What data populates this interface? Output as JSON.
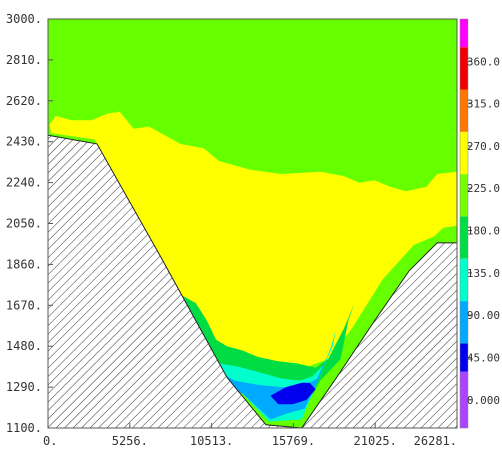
{
  "chart_data": {
    "type": "heatmap",
    "title": "",
    "xlabel": "",
    "ylabel": "",
    "xlim": [
      0,
      26281
    ],
    "ylim": [
      1100,
      3000
    ],
    "x_ticks": [
      0,
      5256,
      10513,
      15769,
      21025,
      26281
    ],
    "x_tick_labels": [
      "0.",
      "5256.",
      "10513.",
      "15769.",
      "21025.",
      "26281."
    ],
    "y_ticks": [
      3000,
      2810,
      2620,
      2430,
      2240,
      2050,
      1860,
      1670,
      1480,
      1290,
      1100
    ],
    "y_tick_labels": [
      "3000.",
      "2810.",
      "2620.",
      "2430.",
      "2240.",
      "2050.",
      "1860.",
      "1670.",
      "1480.",
      "1290.",
      "1100."
    ],
    "colorbar": {
      "range": [
        -30,
        405
      ],
      "ticks": [
        0,
        45,
        90,
        135,
        180,
        225,
        270,
        315,
        360
      ],
      "tick_labels": [
        "0.000",
        "45.00",
        "90.00",
        "135.0",
        "180.0",
        "225.0",
        "270.0",
        "315.0",
        "360.0"
      ],
      "bands": [
        {
          "from": -30,
          "to": 30,
          "color": "#aa44ff"
        },
        {
          "from": 30,
          "to": 60,
          "color": "#0000ee"
        },
        {
          "from": 60,
          "to": 105,
          "color": "#00aaff"
        },
        {
          "from": 105,
          "to": 150,
          "color": "#00ffcc"
        },
        {
          "from": 150,
          "to": 195,
          "color": "#00dd44"
        },
        {
          "from": 195,
          "to": 240,
          "color": "#77ff00"
        },
        {
          "from": 240,
          "to": 285,
          "color": "#ffff00"
        },
        {
          "from": 285,
          "to": 330,
          "color": "#ff7700"
        },
        {
          "from": 330,
          "to": 375,
          "color": "#ee0000"
        },
        {
          "from": 375,
          "to": 405,
          "color": "#ff00ff"
        }
      ]
    },
    "background_color": "#66ff00",
    "terrain": [
      [
        0,
        2460
      ],
      [
        3150,
        2420
      ],
      [
        7200,
        1900
      ],
      [
        11500,
        1335
      ],
      [
        14000,
        1115
      ],
      [
        16300,
        1100
      ],
      [
        18500,
        1330
      ],
      [
        21000,
        1600
      ],
      [
        23200,
        1830
      ],
      [
        25000,
        1960
      ],
      [
        26281,
        1960
      ]
    ],
    "regions": [
      {
        "color": "#ffff00",
        "points": [
          [
            200,
            2470
          ],
          [
            3000,
            2440
          ],
          [
            4500,
            2250
          ],
          [
            6000,
            2030
          ],
          [
            7800,
            1760
          ],
          [
            10000,
            1470
          ],
          [
            12000,
            1420
          ],
          [
            13800,
            1410
          ],
          [
            15000,
            1370
          ],
          [
            16500,
            1380
          ],
          [
            18000,
            1420
          ],
          [
            19500,
            1560
          ],
          [
            21500,
            1790
          ],
          [
            23500,
            1950
          ],
          [
            24800,
            1990
          ],
          [
            25400,
            2030
          ],
          [
            26281,
            2040
          ],
          [
            26281,
            2290
          ],
          [
            25000,
            2280
          ],
          [
            24300,
            2220
          ],
          [
            23000,
            2200
          ],
          [
            22000,
            2220
          ],
          [
            21000,
            2250
          ],
          [
            20000,
            2240
          ],
          [
            19000,
            2270
          ],
          [
            17500,
            2290
          ],
          [
            15000,
            2280
          ],
          [
            13000,
            2300
          ],
          [
            11000,
            2340
          ],
          [
            10000,
            2400
          ],
          [
            8500,
            2420
          ],
          [
            7500,
            2460
          ],
          [
            6500,
            2500
          ],
          [
            5500,
            2490
          ],
          [
            4600,
            2570
          ],
          [
            3800,
            2560
          ],
          [
            2800,
            2530
          ],
          [
            1500,
            2530
          ],
          [
            500,
            2550
          ],
          [
            100,
            2510
          ]
        ]
      },
      {
        "color": "#00dd44",
        "points": [
          [
            8500,
            1720
          ],
          [
            9500,
            1680
          ],
          [
            10200,
            1600
          ],
          [
            10800,
            1510
          ],
          [
            11500,
            1480
          ],
          [
            12500,
            1460
          ],
          [
            13500,
            1430
          ],
          [
            14800,
            1410
          ],
          [
            16000,
            1400
          ],
          [
            17200,
            1380
          ],
          [
            18000,
            1420
          ],
          [
            19000,
            1560
          ],
          [
            19700,
            1680
          ],
          [
            19300,
            1600
          ],
          [
            18800,
            1420
          ],
          [
            17500,
            1320
          ],
          [
            16200,
            1150
          ],
          [
            14300,
            1140
          ],
          [
            12500,
            1270
          ],
          [
            11200,
            1380
          ],
          [
            10000,
            1530
          ]
        ]
      },
      {
        "color": "#00ffcc",
        "points": [
          [
            9200,
            1530
          ],
          [
            10000,
            1460
          ],
          [
            11000,
            1400
          ],
          [
            12200,
            1385
          ],
          [
            13500,
            1360
          ],
          [
            15000,
            1330
          ],
          [
            16200,
            1320
          ],
          [
            17000,
            1340
          ],
          [
            17800,
            1400
          ],
          [
            18300,
            1480
          ],
          [
            18500,
            1560
          ],
          [
            18200,
            1480
          ],
          [
            17500,
            1350
          ],
          [
            16300,
            1140
          ],
          [
            14200,
            1130
          ],
          [
            12500,
            1260
          ],
          [
            11000,
            1380
          ]
        ]
      },
      {
        "color": "#00aaff",
        "points": [
          [
            10100,
            1385
          ],
          [
            11000,
            1360
          ],
          [
            12000,
            1320
          ],
          [
            13500,
            1300
          ],
          [
            15000,
            1290
          ],
          [
            16300,
            1290
          ],
          [
            17300,
            1330
          ],
          [
            17900,
            1430
          ],
          [
            17400,
            1330
          ],
          [
            16500,
            1190
          ],
          [
            15500,
            1170
          ],
          [
            14300,
            1140
          ],
          [
            12500,
            1260
          ],
          [
            11200,
            1300
          ]
        ]
      },
      {
        "color": "#0000ee",
        "points": [
          [
            10500,
            1340
          ],
          [
            11300,
            1320
          ],
          [
            11800,
            1300
          ],
          [
            11900,
            1290
          ],
          [
            11000,
            1300
          ]
        ]
      },
      {
        "color": "#0000ee",
        "points": [
          [
            14300,
            1250
          ],
          [
            15300,
            1290
          ],
          [
            16300,
            1310
          ],
          [
            16800,
            1310
          ],
          [
            17200,
            1280
          ],
          [
            16600,
            1230
          ],
          [
            15700,
            1210
          ],
          [
            14800,
            1210
          ]
        ]
      },
      {
        "color": "#ff7700",
        "points": [
          [
            3150,
            2420
          ],
          [
            3600,
            2300
          ],
          [
            4400,
            2150
          ],
          [
            5300,
            2000
          ],
          [
            5500,
            2000
          ],
          [
            4500,
            2180
          ],
          [
            3700,
            2330
          ]
        ]
      }
    ]
  }
}
